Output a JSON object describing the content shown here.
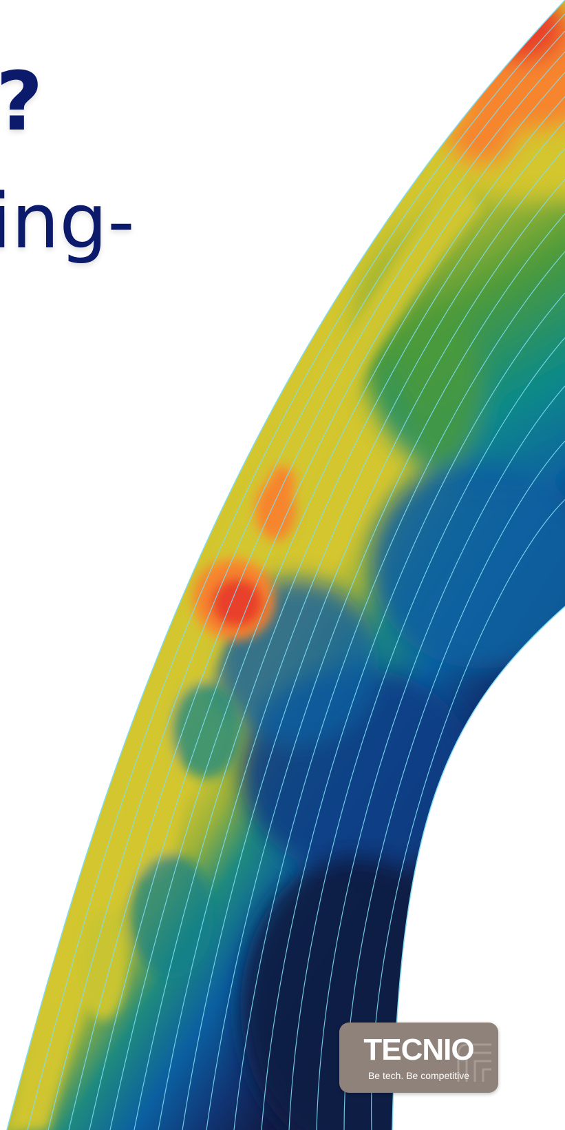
{
  "headline": {
    "line1": "?",
    "line2": "ing-"
  },
  "graphic": {
    "icon": "heatmap-arc-graphic",
    "palette": {
      "hot": "#e8402a",
      "warm": "#f6852d",
      "yellow": "#d3c62f",
      "green": "#4c9a3a",
      "teal": "#0a8a8a",
      "blue": "#0b5fa0",
      "navy": "#0f2e6e",
      "deep": "#141b44",
      "streamline": "#7fdcf2",
      "text": "#0c1a6b"
    }
  },
  "badge": {
    "title": "TECNIO",
    "subtitle": "Be tech. Be competitive",
    "color": "#8f827a"
  }
}
